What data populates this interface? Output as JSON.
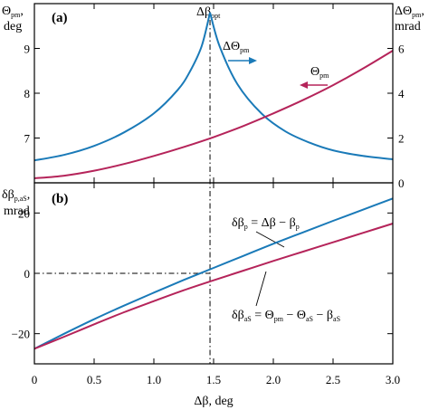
{
  "colors": {
    "blue": "#1a7ab8",
    "red": "#b5245a",
    "axis": "#000000"
  },
  "chart_data": [
    {
      "panel": "(a)",
      "type": "line",
      "xlim": [
        0,
        3
      ],
      "ylim_left": [
        6,
        10
      ],
      "ylim_right": [
        0,
        8
      ],
      "x_ticks": [
        "0",
        "0.5",
        "1.0",
        "1.5",
        "2.0",
        "2.5",
        "3.0"
      ],
      "y_ticks_left": [
        "7",
        "8",
        "9"
      ],
      "y_ticks_right": [
        "0",
        "2",
        "4",
        "6"
      ],
      "ylabel_left": {
        "sym": "Θ",
        "sub": "pm",
        "tail": ",",
        "line2": "deg"
      },
      "ylabel_right": {
        "sym": "ΔΘ",
        "sub": "pm",
        "tail": ",",
        "line2": "mrad"
      },
      "top_label": {
        "sym": "Δβ",
        "sub": "opt"
      },
      "opt_x": 1.47,
      "series": [
        {
          "name": "ΔΘ_pm",
          "label_sym": "ΔΘ",
          "label_sub": "pm",
          "axis": "right",
          "color": "#1a7ab8",
          "x": [
            0,
            0.25,
            0.5,
            0.75,
            1.0,
            1.2,
            1.3,
            1.4,
            1.47,
            1.55,
            1.7,
            1.9,
            2.1,
            2.3,
            2.5,
            2.75,
            3.0
          ],
          "y": [
            1.0,
            1.25,
            1.65,
            2.25,
            3.1,
            4.15,
            4.95,
            6.1,
            7.6,
            6.1,
            4.4,
            3.1,
            2.3,
            1.8,
            1.45,
            1.2,
            1.05
          ]
        },
        {
          "name": "Θ_pm",
          "label_sym": "Θ",
          "label_sub": "pm",
          "axis": "left",
          "color": "#b5245a",
          "x": [
            0,
            0.25,
            0.5,
            0.75,
            1.0,
            1.25,
            1.5,
            1.75,
            2.0,
            2.25,
            2.5,
            2.75,
            3.0
          ],
          "y": [
            6.1,
            6.16,
            6.27,
            6.42,
            6.6,
            6.8,
            7.02,
            7.27,
            7.55,
            7.85,
            8.18,
            8.55,
            8.95
          ]
        }
      ]
    },
    {
      "panel": "(b)",
      "type": "line",
      "xlim": [
        0,
        3
      ],
      "ylim": [
        -30,
        30
      ],
      "x_ticks": [
        "0",
        "0.5",
        "1.0",
        "1.5",
        "2.0",
        "2.5",
        "3.0"
      ],
      "y_ticks": [
        "−20",
        "0",
        "20"
      ],
      "xlabel": "Δβ, deg",
      "ylabel": {
        "sym": "δβ",
        "sub": "p,aS",
        "tail": ",",
        "line2": "mrad"
      },
      "opt_x": 1.47,
      "series": [
        {
          "name": "δβ_p = Δβ − β_p",
          "color": "#1a7ab8",
          "label_parts": [
            {
              "t": "δβ"
            },
            {
              "t": "p",
              "sub": true
            },
            {
              "t": " = Δβ − β"
            },
            {
              "t": "p",
              "sub": true
            }
          ],
          "x": [
            0,
            0.25,
            0.5,
            0.75,
            1.0,
            1.25,
            1.5,
            1.75,
            2.0,
            2.25,
            2.5,
            2.75,
            3.0
          ],
          "y": [
            -25,
            -20,
            -15.2,
            -10.7,
            -6.4,
            -2.2,
            1.8,
            5.8,
            9.8,
            13.6,
            17.4,
            21.1,
            24.8
          ]
        },
        {
          "name": "δβ_aS = Θ_pm − Θ_aS − β_aS",
          "color": "#b5245a",
          "label_parts": [
            {
              "t": "δβ"
            },
            {
              "t": "aS",
              "sub": true
            },
            {
              "t": " = Θ"
            },
            {
              "t": "pm",
              "sub": true
            },
            {
              "t": " − Θ"
            },
            {
              "t": "aS",
              "sub": true
            },
            {
              "t": " − β"
            },
            {
              "t": "aS",
              "sub": true
            }
          ],
          "x": [
            0,
            0.25,
            0.5,
            0.75,
            1.0,
            1.25,
            1.5,
            1.75,
            2.0,
            2.25,
            2.5,
            2.75,
            3.0
          ],
          "y": [
            -25,
            -21,
            -16.9,
            -12.9,
            -9.2,
            -5.6,
            -2.3,
            0.9,
            4.1,
            7.2,
            10.3,
            13.4,
            16.5
          ]
        }
      ]
    }
  ]
}
